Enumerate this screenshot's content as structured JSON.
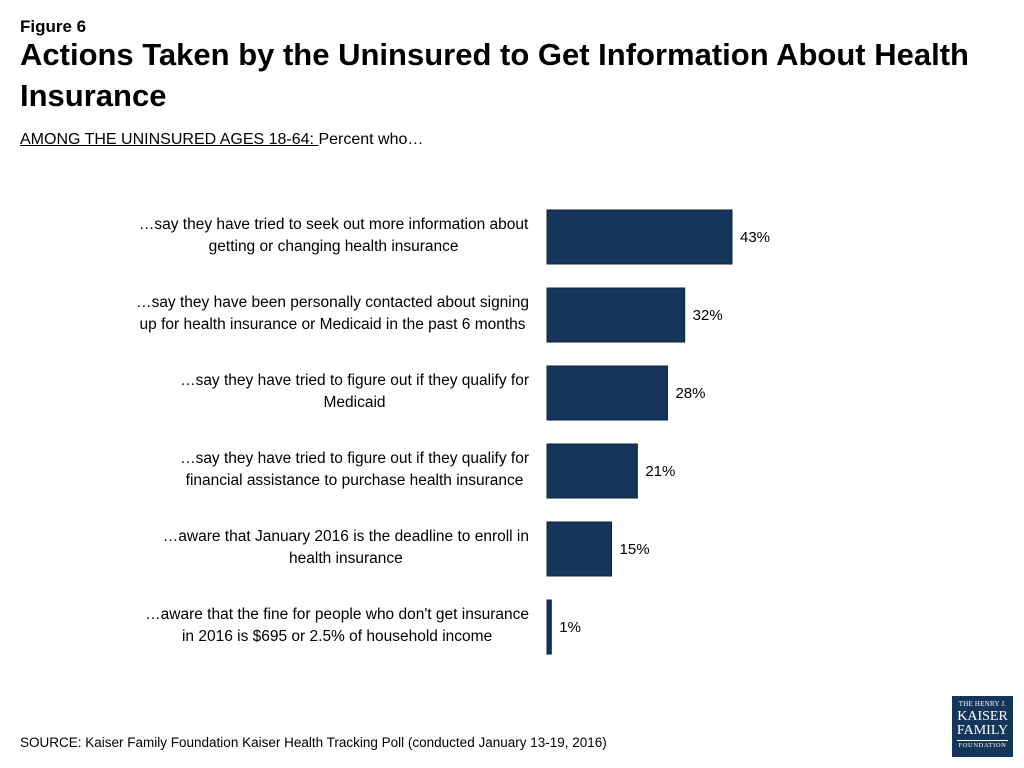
{
  "figure_label": "Figure 6",
  "chart_data": {
    "type": "bar",
    "orientation": "horizontal",
    "title": "Actions Taken by the Uninsured to Get Information About Health Insurance",
    "subtitle_prefix": "AMONG THE UNINSURED AGES 18-64: ",
    "subtitle_rest": "Percent who…",
    "categories": [
      [
        "…say they have tried to seek out more information about",
        "getting or changing health insurance"
      ],
      [
        "…say they have been personally contacted about signing",
        "up for health insurance or Medicaid in the past 6 months"
      ],
      [
        "…say they have tried to figure out if they qualify for",
        "Medicaid"
      ],
      [
        "…say they have tried to figure out if they qualify for",
        "financial assistance to purchase health insurance"
      ],
      [
        "…aware that January 2016 is the deadline to enroll in",
        "health insurance"
      ],
      [
        "…aware that the fine for people who don't get insurance",
        "in 2016 is $695 or 2.5% of household income"
      ]
    ],
    "values": [
      43,
      32,
      28,
      21,
      15,
      1
    ],
    "value_labels": [
      "43%",
      "32%",
      "28%",
      "21%",
      "15%",
      "1%"
    ],
    "xlim": [
      0,
      100
    ],
    "bar_color": "#15355a"
  },
  "source": "SOURCE: Kaiser Family Foundation Kaiser Health Tracking Poll (conducted January 13-19, 2016)",
  "logo": {
    "line1": "THE HENRY J.",
    "line2": "KAISER",
    "line3": "FAMILY",
    "line4": "FOUNDATION"
  }
}
